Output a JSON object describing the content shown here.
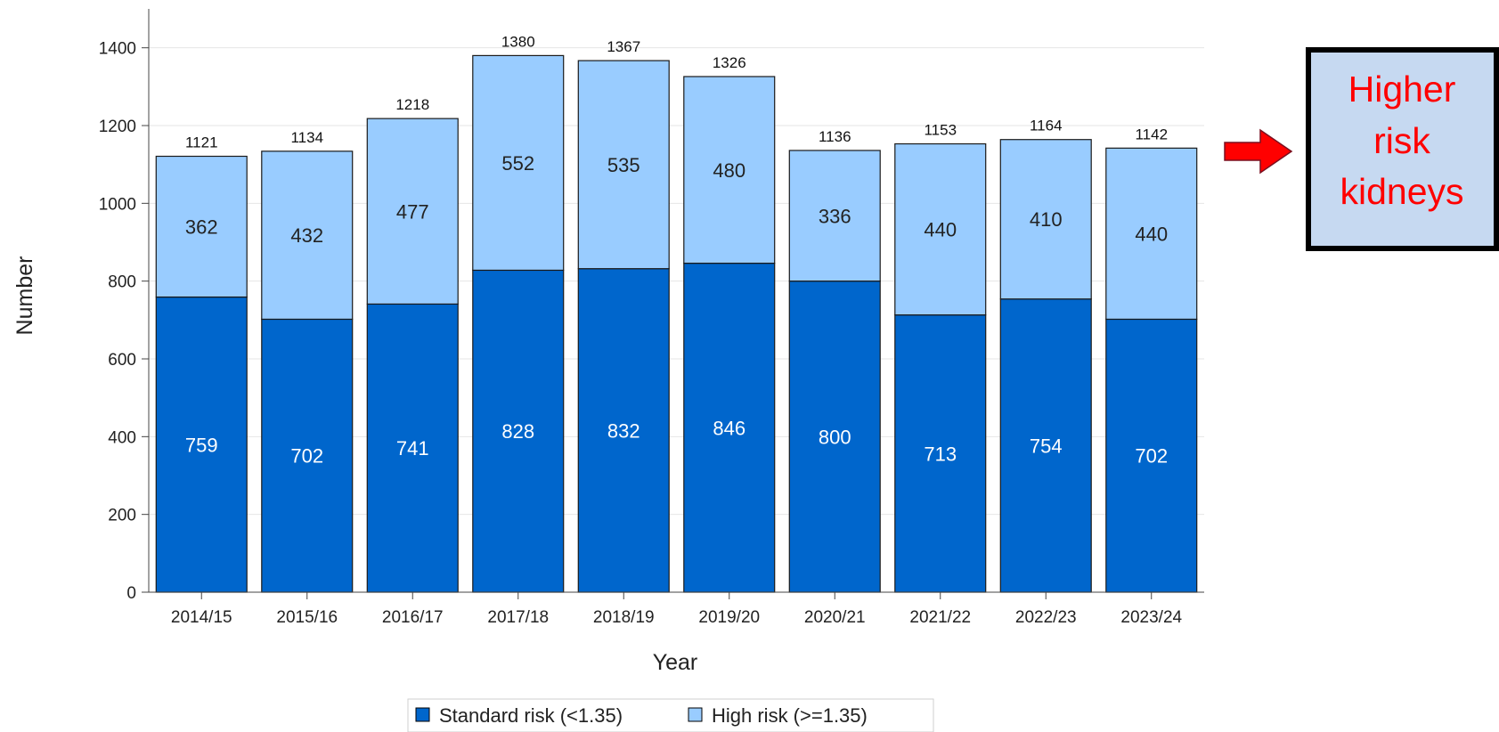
{
  "chart_data": {
    "type": "bar",
    "stacked": true,
    "categories": [
      "2014/15",
      "2015/16",
      "2016/17",
      "2017/18",
      "2018/19",
      "2019/20",
      "2020/21",
      "2021/22",
      "2022/23",
      "2023/24"
    ],
    "series": [
      {
        "name": "Standard risk (<1.35)",
        "values": [
          759,
          702,
          741,
          828,
          832,
          846,
          800,
          713,
          754,
          702
        ],
        "color": "#0066cc",
        "label_color": "#ffffff"
      },
      {
        "name": "High risk (>=1.35)",
        "values": [
          362,
          432,
          477,
          552,
          535,
          480,
          336,
          440,
          410,
          440
        ],
        "color": "#99ccff",
        "label_color": "#222222"
      }
    ],
    "totals": [
      1121,
      1134,
      1218,
      1380,
      1367,
      1326,
      1136,
      1153,
      1164,
      1142
    ],
    "xlabel": "Year",
    "ylabel": "Number",
    "ylim": [
      0,
      1500
    ],
    "yticks": [
      0,
      200,
      400,
      600,
      800,
      1000,
      1200,
      1400
    ],
    "grid": true,
    "legend_position": "bottom"
  },
  "callout": {
    "lines": [
      "Higher",
      "risk",
      "kidneys"
    ],
    "text_color": "#ff0000",
    "fill_color": "#c6d9f1",
    "border_color": "#000000",
    "arrow_color": "#ff0000",
    "arrow": "right-arrow-icon"
  }
}
